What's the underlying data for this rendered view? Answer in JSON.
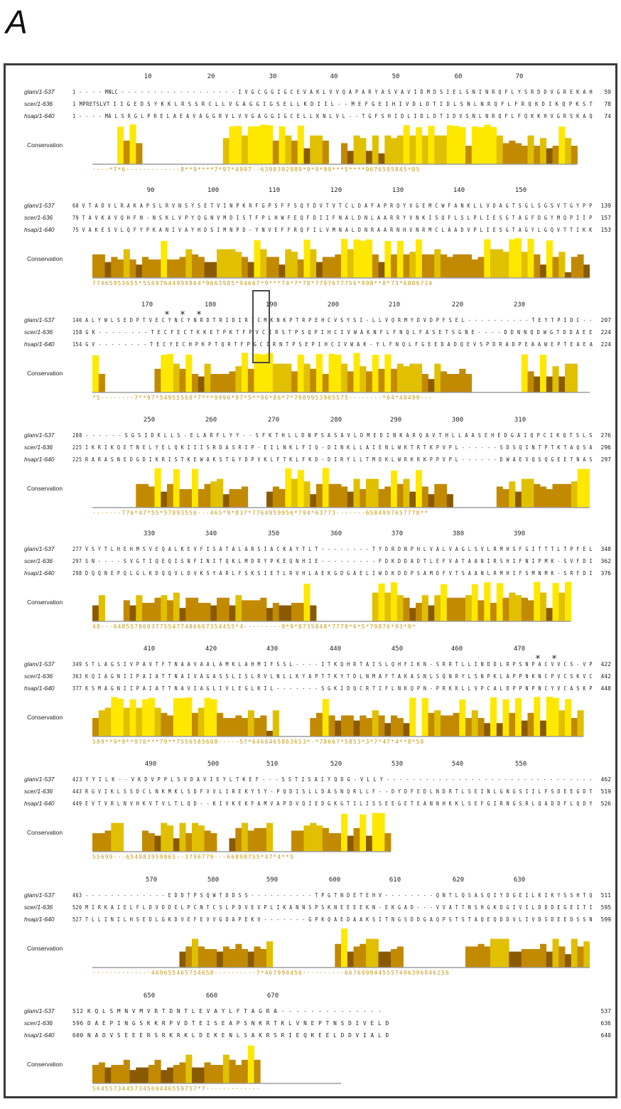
{
  "panel_label": "A",
  "conservation_label": "Conservation",
  "colors": {
    "low": "#8a5a00",
    "mid": "#c28a00",
    "high": "#e0c000",
    "max": "#ffe800",
    "baseline": "#9e9e9e",
    "score_text": "#c59a18"
  },
  "blocks": [
    {
      "ticks": [
        "10",
        "20",
        "30",
        "40",
        "50",
        "60",
        "70"
      ],
      "dots": [],
      "rows": [
        {
          "name": "glam/1-537",
          "seq": "1 - - - - MNLC - - - - - - - - - - - - - - - - - - I V G C G G I G C E V A K L V V Q A P A R Y A S V A V I D M D S I E L S N I N R Q F L Y S R D D V G R E K A H",
          "end": "59"
        },
        {
          "name": "scer/1-636",
          "seq": "1 MPRETSLVT I I G E D S Y K K L R S S R C L L V G A G G I G S E L L K D I I L - - M E F G E I H I V D L D T I D L S N L N R Q F L F R Q K D I K Q P K S T",
          "end": "78"
        },
        {
          "name": "hsap/1-640",
          "seq": "1 - - - - MA L S R G L P R E L A E A V A G G R V L V V G A G G I G C E L L K N L V L - - T G F S H I D L I D L D T I D V S N L N R Q F L F Q K K H V G R S K A Q",
          "end": "74"
        }
      ],
      "scores": "····*7*6·············8**9****7*97*4997··6398392989*9*9*99***5****9676595845*85"
    },
    {
      "ticks": [
        "90",
        "100",
        "110",
        "120",
        "130",
        "140",
        "150"
      ],
      "dots": [],
      "rows": [
        {
          "name": "glam/1-537",
          "seq": "60 V T A D V L R A K A P S L R V N S Y S E T V I N P K R F G P S F F S Q Y D V T V T C L D A F A P R Q Y V G E M C W F A N K L L V D A G T S G L S G S V T G Y P P",
          "end": "139"
        },
        {
          "name": "scer/1-636",
          "seq": "79 T A V K A V Q H F N - N S K L V P Y Q G N V M D I S T F P L H W F E Q F D I I F N A L D N L A A R R Y V N K I S Q F L S L P L I E S G T A G F D G Y M Q P I I P",
          "end": "157"
        },
        {
          "name": "hsap/1-640",
          "seq": "75 V A K E S V L Q F Y P K A N I V A Y H D S I M N P D - Y N V E F F R Q F I L V M N A L D N R A A R N H V N R M C L A A D V P L I E S G T A G Y L G Q V T T I K K",
          "end": "153"
        }
      ],
      "scores": "77465953655*55697644999864*9663985*94667*9***74*7*78*7797677756*998**8*73*6806734"
    },
    {
      "ticks": [
        "170",
        "180",
        "190",
        "200",
        "210",
        "220",
        "230"
      ],
      "dots": [
        "*",
        "*",
        "*"
      ],
      "rows": [
        {
          "name": "glam/1-537",
          "seq": "140 A L Y W L S E D P T V E C Y N C Y N R D T R I D I R I C M K N K P T R P E H C V S Y S I - L L V Q R M Y D V D P F S E L - - - - - - - - - - T E Y T P I D C - -",
          "end": "207"
        },
        {
          "name": "scer/1-636",
          "seq": "158 G K - - - - - - - - T E C F E C T K K E T P K T F P V C I R S T P S Q P I H C I V W A K N F L F N Q L F A S E T S G N E - - - - D D N N Q D W G T D D A E E",
          "end": "224"
        },
        {
          "name": "hsap/1-640",
          "seq": "154 G V - - - - - - - - T E C Y E C H P K P T Q R T F P G C I R N T P S E P I H C I V W A K - Y L F N Q L F G E E D A D Q E V S P D R A D P E A A W E P T E A E A",
          "end": "224"
        }
      ],
      "scores": "*5········7**97*54955568*7***9996*97*5**96*86*7*7989953965575········*64*48499···"
    },
    {
      "ticks": [
        "250",
        "260",
        "270",
        "280",
        "290",
        "300",
        "310"
      ],
      "dots": [],
      "rows": [
        {
          "name": "glam/1-537",
          "seq": "208 - - - - - - S G S I D K L L S - E L A R F L Y Y - - S F K T H L L D N P S A S A V L D M E D I N K A R Q A V T H L L A A S E H E D G A I Q P C I K Q T S L S",
          "end": "276"
        },
        {
          "name": "scer/1-636",
          "seq": "225 I K R I K Q E T N E L Y E L Q K I I I S R D A S R I P - E I L N K L F I Q - D I N K L L A I E N L W K T R T K P V P L - - - - - - S D S Q I N T P T K T A Q S A",
          "end": "296"
        },
        {
          "name": "hsap/1-640",
          "seq": "225 R A R A S N E D G D I K R I S T K E W A K S T G Y D P V K L F T K L F K D - D I R Y L L T M D K L W R K R K P P V P L - - - - - - D W A E V Q S Q G E E T N A S",
          "end": "297"
        }
      ],
      "scores": "·······776*47*55*57893556···465*9*837*7764959956*794*63773·······6584997657778**"
    },
    {
      "ticks": [
        "330",
        "340",
        "350",
        "360",
        "370",
        "380",
        "390"
      ],
      "dots": [],
      "rows": [
        {
          "name": "glam/1-537",
          "seq": "277 V S Y T L H E H M S V E Q A L K E V F I S A T A L A R S I A C K A Y T L T - - - - - - - - T Y D R D N P H L V A L V A G L S V L R M H S F G I T T T L T P F E L",
          "end": "348"
        },
        {
          "name": "scer/1-636",
          "seq": "297 S N - - - - S V G T I Q E Q I S N F I N I T Q K L M D R Y P K E Q N H I E - - - - - - - - - F D K D D A D T L E F V A T A A N I R S H I F N I P M K - S V F D I",
          "end": "362"
        },
        {
          "name": "hsap/1-640",
          "seq": "298 D Q Q N E P Q L G L K D Q Q V L D V K S Y A R L F S K S I E T L R V H L A E K G D G A E L I W D K D D P S A M D F V T S A A N L R M H I F S M N M K - S R F D I",
          "end": "376"
        }
      ],
      "scores": "48···64855786937755477486667354455*4·········9*9*8735848*7778*6*5*79876*93*9*"
    },
    {
      "ticks": [
        "410",
        "420",
        "430",
        "440",
        "450",
        "460",
        "470"
      ],
      "dots": [
        "*",
        "*"
      ],
      "rows": [
        {
          "name": "glam/1-537",
          "seq": "349 S T L A G S I V P A V T F T N A A V A A L A M K L A H M I F S S L - - - - I T K Q H R T A I S L Q H F I K N - S R R T L L I N D D L R P S N P A C V V C S - V P",
          "end": "422"
        },
        {
          "name": "scer/1-636",
          "seq": "363 K Q I A G N I I P A I A T T N A I V A G A S S L I S L R V L N L L K Y A P T T K Y T D L N M A F T A K A S N L S Q N R Y L S N P K L A P P N K N C P V C S K V C",
          "end": "442"
        },
        {
          "name": "hsap/1-640",
          "seq": "377 K S M A G N I I P A I A T T N A V I A G L I V L E G L K I L - - - - - - - S G K I D Q C R T I F L N K Q P N - P R K K L L V P C A L D P P N P N C Y V C A S K P",
          "end": "448"
        }
      ],
      "scores": "589**9*9**976***79**7556585608·····57*6466465863653*·*78667*5853*3*7*47*4**8*58"
    },
    {
      "ticks": [
        "490",
        "500",
        "510",
        "520",
        "530",
        "540",
        "550"
      ],
      "dots": [],
      "rows": [
        {
          "name": "glam/1-537",
          "seq": "423 Y Y I L K - - V K D V P P L S V D A V I E Y L T K E F - - - S S T I S A I Y Q D G - V L L Y - - - - - - - - - - - - - - - - - - - - - - - - - - - - - - - -",
          "end": "462"
        },
        {
          "name": "scer/1-636",
          "seq": "443 R G V I K L S S D C L N K M K L S D F V V L I R E K Y S Y - P Q D I S L L D A S N Q R L L F - - D Y D F E D L N D R T L S E I N L G N G S I I L F S D E E G D T",
          "end": "519"
        },
        {
          "name": "hsap/1-640",
          "seq": "449 E V T V R L N V H K V T V L T L Q D - - K I V K E K F A M V A P D V Q I E D G K G T I L I S S E E G E T E A N N H K K L S E F G I R N G S R L Q A D D F L Q D Y",
          "end": "526"
        }
      ],
      "scores": "55699···654983959865··3796779···66898755*47*4**5"
    },
    {
      "ticks": [
        "570",
        "580",
        "590",
        "600",
        "610",
        "620",
        "630"
      ],
      "dots": [],
      "rows": [
        {
          "name": "glam/1-537",
          "seq": "463 - - - - - - - - - - - - - E D D T P S Q W T D D S S - - - - - - - - - - T P G T N D E T E H V - - - - - - - - Q N T L Q S A S Q I Y D G E I L K I K Y S S H T Q",
          "end": "511"
        },
        {
          "name": "scer/1-636",
          "seq": "520 M I R K A I E L F L D V D D E L P C N T C S L P D V E V P L I K A N N S P S K N E E E E K N - E K G A D - - - V V A T T N S H G K D G I V I L D D D E G E I T I",
          "end": "595"
        },
        {
          "name": "hsap/1-640",
          "seq": "527 T L L I N I L H S E D L G K D V E F E V V G D A P E K V - - - - - - - G P K Q A E D A A K S I T N G S D D G A Q P S T S T A Q E Q D D V L I V D S D E E D S S N",
          "end": "599"
        }
      ],
      "scores": "··············469655465754658··········7*467994456··········6676999445557496396846256"
    },
    {
      "ticks": [
        "650",
        "660",
        "670"
      ],
      "dots": [],
      "rows": [
        {
          "name": "glam/1-537",
          "seq": "512 K Q L S M N V M V R T D N T L E V A Y L F T A G R A - - - - - - - - - - - - - -",
          "end": "537"
        },
        {
          "name": "scer/1-636",
          "seq": "596 D A E P I N G S K K R P V D T E I S E A P S N K R T K L V N E P T N S D I V E L D",
          "end": "636"
        },
        {
          "name": "hsap/1-640",
          "seq": "600 N A D V S E E E R S R K R K L D E K E N L S A K R S R I E Q K E E L D D V I A L D",
          "end": "640"
        }
      ],
      "scores": "5645573445734569446559757*7·············"
    }
  ]
}
